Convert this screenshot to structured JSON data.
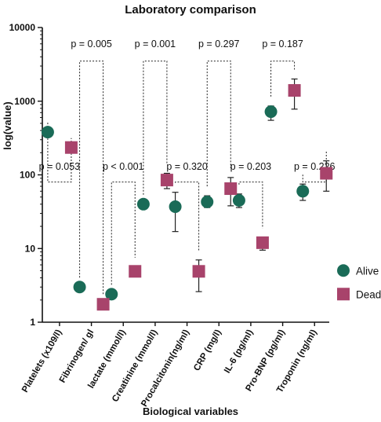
{
  "chart_data": {
    "type": "scatter",
    "title": "Laboratory comparison",
    "xlabel": "Biological variables",
    "ylabel": "log(value)",
    "yscale": "log",
    "ylim": [
      1,
      10000
    ],
    "yticks": [
      {
        "value": 1,
        "label": "1"
      },
      {
        "value": 10,
        "label": "10"
      },
      {
        "value": 100,
        "label": "100"
      },
      {
        "value": 1000,
        "label": "1000"
      },
      {
        "value": 10000,
        "label": "10000"
      }
    ],
    "categories": [
      "Platelets (x109/l)",
      "Fibrinogen/ gl",
      "lactate (mmol/l)",
      "Creatinine (mmol/l)",
      "Procalcitonin(ng/ml)",
      "CRP (mg/l)",
      "IL-6 (pg/ml)",
      "Pro-BNP (pg/ml)",
      "Troponin (ng/ml)"
    ],
    "series": [
      {
        "name": "Alive",
        "color": "#1a6b57",
        "marker": "circle",
        "values": [
          380,
          3.0,
          2.4,
          40,
          37,
          43,
          45,
          720,
          60
        ],
        "error_low": [
          null,
          null,
          null,
          null,
          17,
          36,
          36,
          550,
          45
        ],
        "error_high": [
          null,
          null,
          null,
          null,
          58,
          52,
          55,
          860,
          75
        ]
      },
      {
        "name": "Dead",
        "color": "#a8436b",
        "marker": "square",
        "values": [
          235,
          1.75,
          4.9,
          85,
          4.9,
          65,
          12,
          1400,
          105
        ],
        "error_low": [
          null,
          null,
          4.2,
          65,
          2.6,
          38,
          9.5,
          780,
          60
        ],
        "error_high": [
          null,
          null,
          5.6,
          105,
          7.0,
          92,
          14,
          2000,
          155
        ]
      }
    ],
    "comparisons": [
      {
        "label": "p = 0.053",
        "top": 80,
        "label_pos": 130
      },
      {
        "label": "p = 0.005",
        "top": 3500,
        "label_pos": 6000
      },
      {
        "label": "p < 0.001",
        "top": 80,
        "label_pos": 130
      },
      {
        "label": "p = 0.001",
        "top": 3500,
        "label_pos": 6000
      },
      {
        "label": "p = 0.320",
        "top": 80,
        "label_pos": 130
      },
      {
        "label": "p = 0.297",
        "top": 3500,
        "label_pos": 6000
      },
      {
        "label": "p = 0.203",
        "top": 80,
        "label_pos": 130
      },
      {
        "label": "p = 0.187",
        "top": 3500,
        "label_pos": 6000
      },
      {
        "label": "p = 0.226",
        "top": 80,
        "label_pos": 130
      }
    ],
    "legend": {
      "position": "right",
      "entries": [
        "Alive",
        "Dead"
      ]
    },
    "grid": false
  }
}
